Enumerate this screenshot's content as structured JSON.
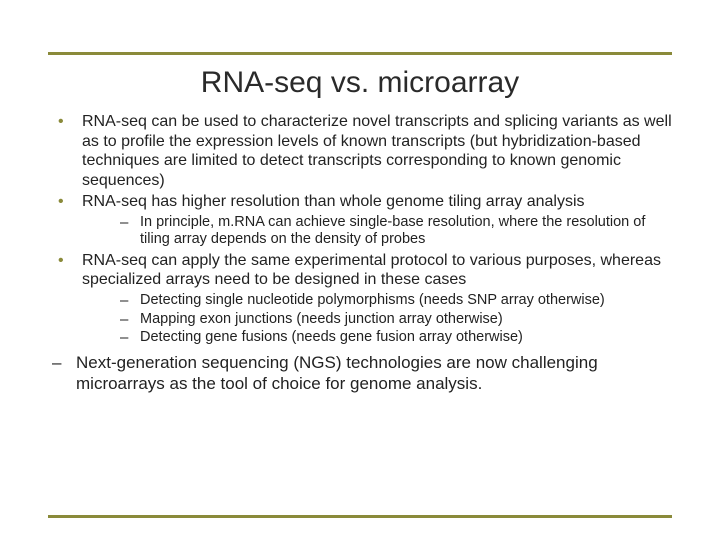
{
  "colors": {
    "rule": "#8a8a3a",
    "bullet": "#8a8a3a",
    "text": "#222222",
    "background": "#ffffff"
  },
  "typography": {
    "title_fontsize": 30,
    "body_fontsize": 16,
    "sub_fontsize": 14.5,
    "closing_fontsize": 17,
    "font_family": "Arial"
  },
  "title": "RNA-seq vs. microarray",
  "bullets": {
    "b1": "RNA-seq can be used to characterize novel transcripts and splicing variants as well as to profile the expression levels of known transcripts (but hybridization-based techniques are limited to detect transcripts corresponding to known genomic sequences)",
    "b2": "RNA-seq has higher resolution than whole genome tiling array analysis",
    "b2_sub1": "In principle, m.RNA can achieve single-base resolution, where the resolution of tiling array depends on the density of probes",
    "b3": "RNA-seq can apply the same experimental protocol to various purposes, whereas specialized arrays need to be designed in these cases",
    "b3_sub1": "Detecting single nucleotide polymorphisms (needs SNP array otherwise)",
    "b3_sub2": "Mapping exon junctions (needs junction array otherwise)",
    "b3_sub3": "Detecting gene fusions (needs gene fusion array otherwise)",
    "closing": "Next-generation sequencing (NGS) technologies are now challenging microarrays as the tool of choice for genome analysis."
  }
}
